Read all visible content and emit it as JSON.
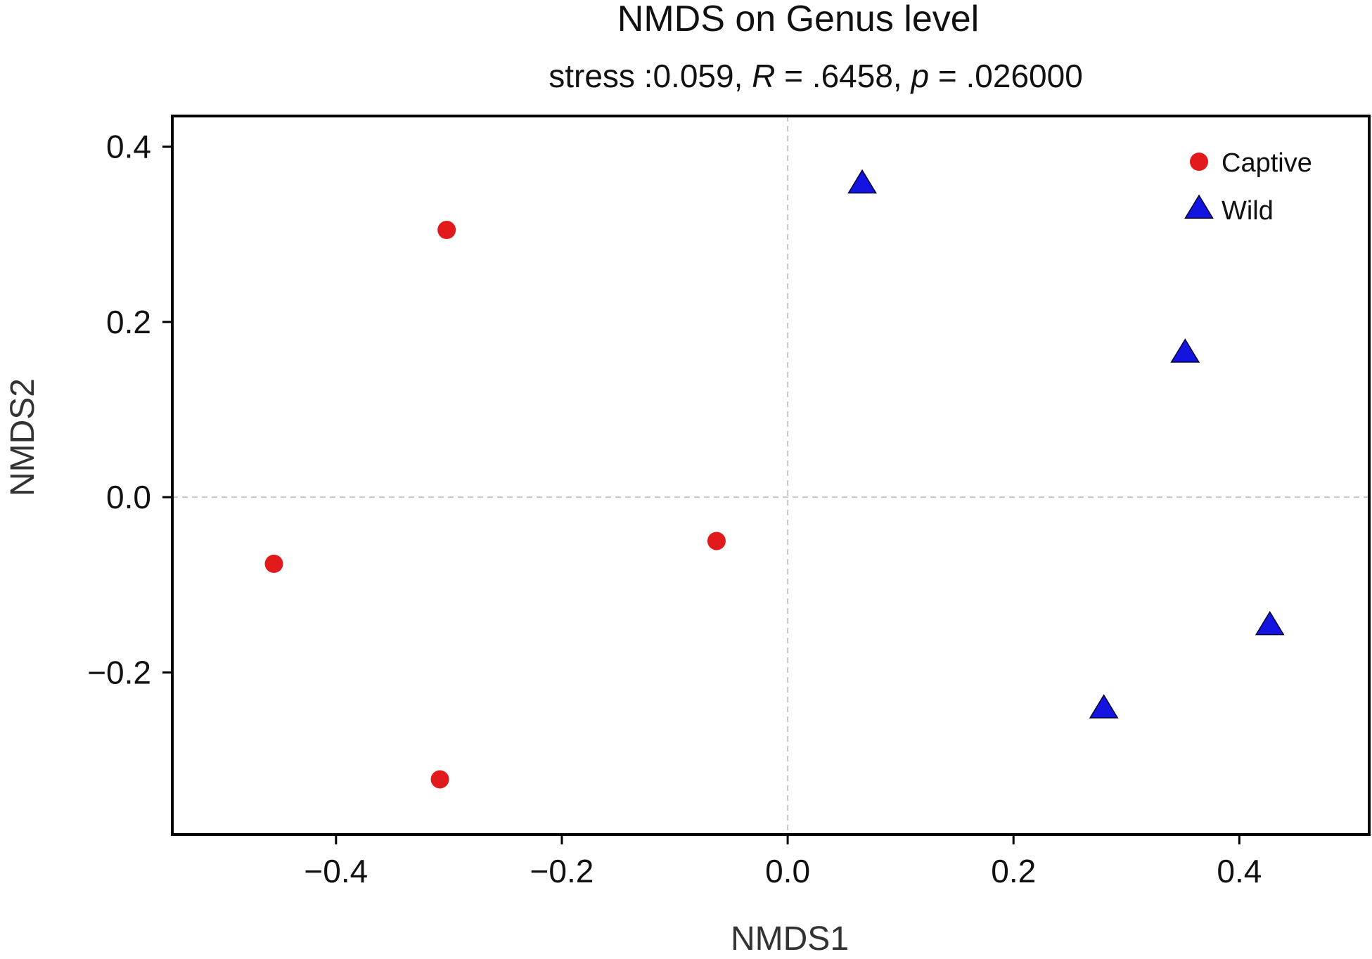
{
  "chart_data": {
    "type": "scatter",
    "title": "NMDS on Genus level",
    "subtitle": {
      "prefix": "stress :0.059, ",
      "r_symbol": "R",
      "r_text": " = .6458, ",
      "p_symbol": "p",
      "p_text": " = .026000"
    },
    "xlabel": "NMDS1",
    "ylabel": "NMDS2",
    "xlim": [
      -0.545,
      0.515
    ],
    "ylim": [
      -0.385,
      0.435
    ],
    "xticks": [
      {
        "value": -0.4,
        "label": "−0.4"
      },
      {
        "value": -0.2,
        "label": "−0.2"
      },
      {
        "value": 0.0,
        "label": "0.0"
      },
      {
        "value": 0.2,
        "label": "0.2"
      },
      {
        "value": 0.4,
        "label": "0.4"
      }
    ],
    "yticks": [
      {
        "value": -0.2,
        "label": "−0.2"
      },
      {
        "value": 0.0,
        "label": "0.0"
      },
      {
        "value": 0.2,
        "label": "0.2"
      },
      {
        "value": 0.4,
        "label": "0.4"
      }
    ],
    "reference_lines": {
      "x": 0.0,
      "y": 0.0,
      "style": "dashed",
      "color": "#c8c8c8"
    },
    "grid": false,
    "legend_position": "top-right",
    "series": [
      {
        "name": "Captive",
        "marker": "circle",
        "color": "#e31a1c",
        "points": [
          {
            "x": -0.302,
            "y": 0.305
          },
          {
            "x": -0.455,
            "y": -0.076
          },
          {
            "x": -0.063,
            "y": -0.05
          },
          {
            "x": -0.308,
            "y": -0.322
          }
        ]
      },
      {
        "name": "Wild",
        "marker": "triangle",
        "color": "#1414e0",
        "points": [
          {
            "x": 0.066,
            "y": 0.357
          },
          {
            "x": 0.352,
            "y": 0.164
          },
          {
            "x": 0.427,
            "y": -0.147
          },
          {
            "x": 0.28,
            "y": -0.242
          }
        ]
      }
    ]
  }
}
